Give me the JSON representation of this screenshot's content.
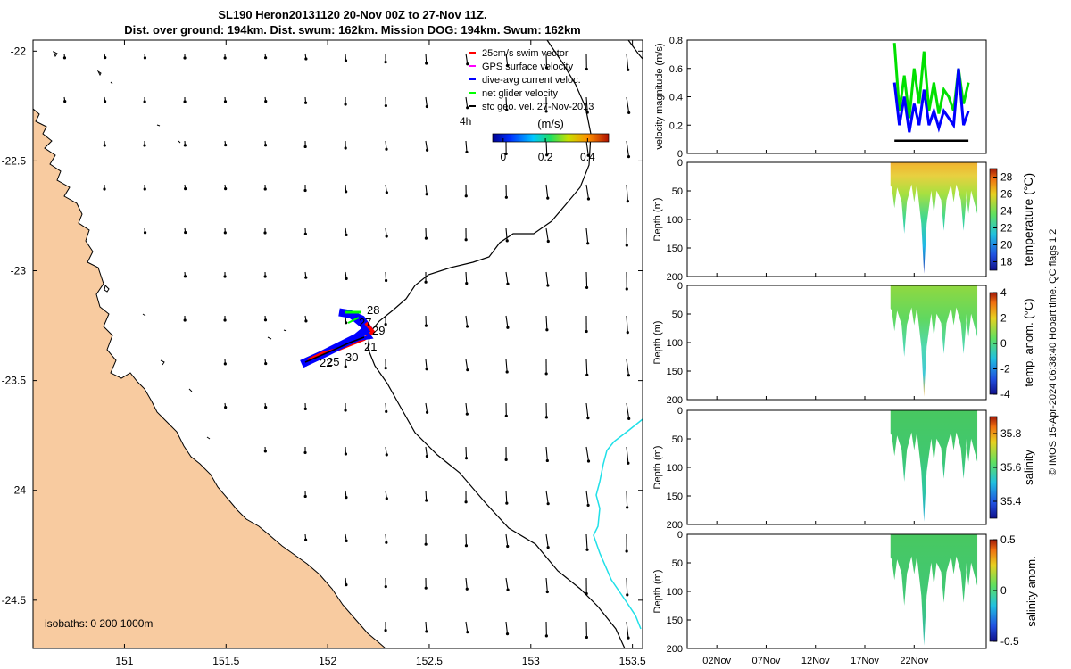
{
  "title": {
    "line1": "SL190 Heron20131120 20-Nov 00Z to 27-Nov 11Z.",
    "line2": "Dist. over ground: 194km. Dist. swum: 162km. Mission DOG: 194km. Swum: 162km"
  },
  "chart_data": [
    {
      "type": "map",
      "name": "glider track map",
      "x_ticks": [
        "151",
        "151.5",
        "152",
        "152.5",
        "153",
        "153.5"
      ],
      "x_values": [
        151,
        151.5,
        152,
        152.5,
        153,
        153.5
      ],
      "y_ticks": [
        "-22",
        "-22.5",
        "-23",
        "-23.5",
        "-24",
        "-24.5"
      ],
      "y_values": [
        -22,
        -22.5,
        -23,
        -23.5,
        -24,
        -24.5
      ],
      "xlim": [
        150.55,
        153.55
      ],
      "ylim": [
        -24.72,
        -21.95
      ],
      "legend": [
        "25cm/s swim vector",
        "GPS surface velocity",
        "dive-avg current veloc.",
        "net glider velocity",
        "sfc geo. vel. 27-Nov-2013"
      ],
      "legend_colors": [
        "#ff0000",
        "#ff00ff",
        "#0000ff",
        "#00ff00",
        "#000000"
      ],
      "legend_time_label": "4h",
      "colorbar_label": "(m/s)",
      "colorbar_ticks": [
        "0",
        "0.2",
        "0.4"
      ],
      "colorbar_tick_values": [
        0,
        0.2,
        0.4
      ],
      "colorbar_range": [
        -0.05,
        0.5
      ],
      "day_labels": [
        "28",
        "27",
        "29",
        "21",
        "30",
        "22",
        "25"
      ],
      "isobaths_label": "isobaths: 0   200  1000m",
      "land_color": "#f8cba0"
    },
    {
      "type": "line",
      "name": "velocity magnitude",
      "ylabel": "velocity magnitude (m/s)",
      "ylim": [
        0,
        0.8
      ],
      "y_ticks": [
        "0",
        "0.2",
        "0.4",
        "0.6",
        "0.8"
      ],
      "y_tick_values": [
        0,
        0.2,
        0.4,
        0.6,
        0.8
      ],
      "series": [
        {
          "name": "net glider velocity",
          "color": "#00e000",
          "x": [
            20,
            20.5,
            21,
            21.5,
            22,
            22.5,
            23,
            23.5,
            24,
            24.5,
            25,
            25.5,
            26,
            26.5,
            27,
            27.5
          ],
          "values": [
            0.78,
            0.3,
            0.55,
            0.25,
            0.6,
            0.35,
            0.72,
            0.3,
            0.5,
            0.28,
            0.45,
            0.4,
            0.3,
            0.6,
            0.35,
            0.5
          ]
        },
        {
          "name": "dive-avg current veloc.",
          "color": "#0000ff",
          "x": [
            20,
            20.5,
            21,
            21.5,
            22,
            22.5,
            23,
            23.5,
            24,
            24.5,
            25,
            25.5,
            26,
            26.5,
            27,
            27.5
          ],
          "values": [
            0.5,
            0.2,
            0.4,
            0.15,
            0.35,
            0.2,
            0.45,
            0.2,
            0.3,
            0.18,
            0.3,
            0.25,
            0.2,
            0.6,
            0.2,
            0.3
          ]
        },
        {
          "name": "sfc geo. vel.",
          "color": "#000000",
          "x": [
            20,
            27.5
          ],
          "values": [
            0.09,
            0.09
          ]
        }
      ]
    },
    {
      "type": "heatmap",
      "name": "temperature section",
      "ylabel": "Depth (m)",
      "colorbar_label": "temperature (°C)",
      "ylim": [
        200,
        0
      ],
      "depth_ticks": [
        "0",
        "50",
        "100",
        "150",
        "200"
      ],
      "depth_tick_values": [
        0,
        50,
        100,
        150,
        200
      ],
      "colorbar_ticks": [
        "18",
        "20",
        "22",
        "24",
        "26",
        "28"
      ],
      "colorbar_tick_values": [
        18,
        20,
        22,
        24,
        26,
        28
      ],
      "colorbar_range": [
        17,
        29
      ],
      "max_dive_depth": [
        [
          20,
          80
        ],
        [
          21,
          125
        ],
        [
          22,
          70
        ],
        [
          23,
          195
        ],
        [
          24,
          90
        ],
        [
          25,
          120
        ],
        [
          26,
          70
        ],
        [
          27,
          120
        ],
        [
          27.5,
          90
        ]
      ]
    },
    {
      "type": "heatmap",
      "name": "temperature anomaly section",
      "ylabel": "Depth (m)",
      "colorbar_label": "temp. anom. (°C)",
      "ylim": [
        200,
        0
      ],
      "depth_ticks": [
        "0",
        "50",
        "100",
        "150",
        "200"
      ],
      "depth_tick_values": [
        0,
        50,
        100,
        150,
        200
      ],
      "colorbar_ticks": [
        "4",
        "2",
        "0",
        "-2",
        "-4"
      ],
      "colorbar_tick_values": [
        4,
        2,
        0,
        -2,
        -4
      ],
      "colorbar_range": [
        -4,
        4
      ],
      "max_dive_depth": [
        [
          20,
          80
        ],
        [
          21,
          125
        ],
        [
          22,
          70
        ],
        [
          23,
          195
        ],
        [
          24,
          90
        ],
        [
          25,
          120
        ],
        [
          26,
          70
        ],
        [
          27,
          120
        ],
        [
          27.5,
          90
        ]
      ]
    },
    {
      "type": "heatmap",
      "name": "salinity section",
      "ylabel": "Depth (m)",
      "colorbar_label": "salinity",
      "ylim": [
        200,
        0
      ],
      "depth_ticks": [
        "0",
        "50",
        "100",
        "150",
        "200"
      ],
      "depth_tick_values": [
        0,
        50,
        100,
        150,
        200
      ],
      "colorbar_ticks": [
        "35.8",
        "35.6",
        "35.4"
      ],
      "colorbar_tick_values": [
        35.8,
        35.6,
        35.4
      ],
      "colorbar_range": [
        35.3,
        35.9
      ],
      "max_dive_depth": [
        [
          20,
          80
        ],
        [
          21,
          125
        ],
        [
          22,
          70
        ],
        [
          23,
          195
        ],
        [
          24,
          90
        ],
        [
          25,
          120
        ],
        [
          26,
          70
        ],
        [
          27,
          120
        ],
        [
          27.5,
          90
        ]
      ]
    },
    {
      "type": "heatmap",
      "name": "salinity anomaly section",
      "ylabel": "Depth (m)",
      "colorbar_label": "salinity anom.",
      "ylim": [
        200,
        0
      ],
      "depth_ticks": [
        "0",
        "50",
        "100",
        "150",
        "200"
      ],
      "depth_tick_values": [
        0,
        50,
        100,
        150,
        200
      ],
      "colorbar_ticks": [
        "0.5",
        "0",
        "-0.5"
      ],
      "colorbar_tick_values": [
        0.5,
        0,
        -0.5
      ],
      "colorbar_range": [
        -0.5,
        0.5
      ],
      "max_dive_depth": [
        [
          20,
          80
        ],
        [
          21,
          125
        ],
        [
          22,
          70
        ],
        [
          23,
          195
        ],
        [
          24,
          90
        ],
        [
          25,
          120
        ],
        [
          26,
          70
        ],
        [
          27,
          120
        ],
        [
          27.5,
          90
        ]
      ]
    }
  ],
  "time_axis": {
    "labels": [
      "02Nov",
      "07Nov",
      "12Nov",
      "17Nov",
      "22Nov"
    ],
    "days": [
      2,
      7,
      12,
      17,
      22
    ],
    "range_days": [
      -1,
      29.3
    ],
    "data_start_day": 19.6,
    "data_end_day": 28.4
  },
  "footer": "© IMOS 15-Apr-2024 06:38:40 Hobart time. QC flags 1  2"
}
